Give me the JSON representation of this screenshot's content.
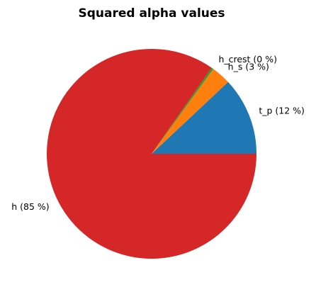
{
  "chart_data": {
    "type": "pie",
    "title": "Squared alpha values",
    "slices": [
      {
        "name": "t_p",
        "value": 12,
        "label": "t_p (12 %)",
        "color": "#1f77b4"
      },
      {
        "name": "h_s",
        "value": 3,
        "label": "h_s (3 %)",
        "color": "#ff7f0e"
      },
      {
        "name": "h_crest",
        "value": 0.3,
        "label": "h_crest (0 %)",
        "color": "#2ca02c"
      },
      {
        "name": "h",
        "value": 84.7,
        "label": "h (85 %)",
        "color": "#d62728"
      }
    ],
    "start_angle_deg": 0,
    "direction": "counterclockwise"
  }
}
